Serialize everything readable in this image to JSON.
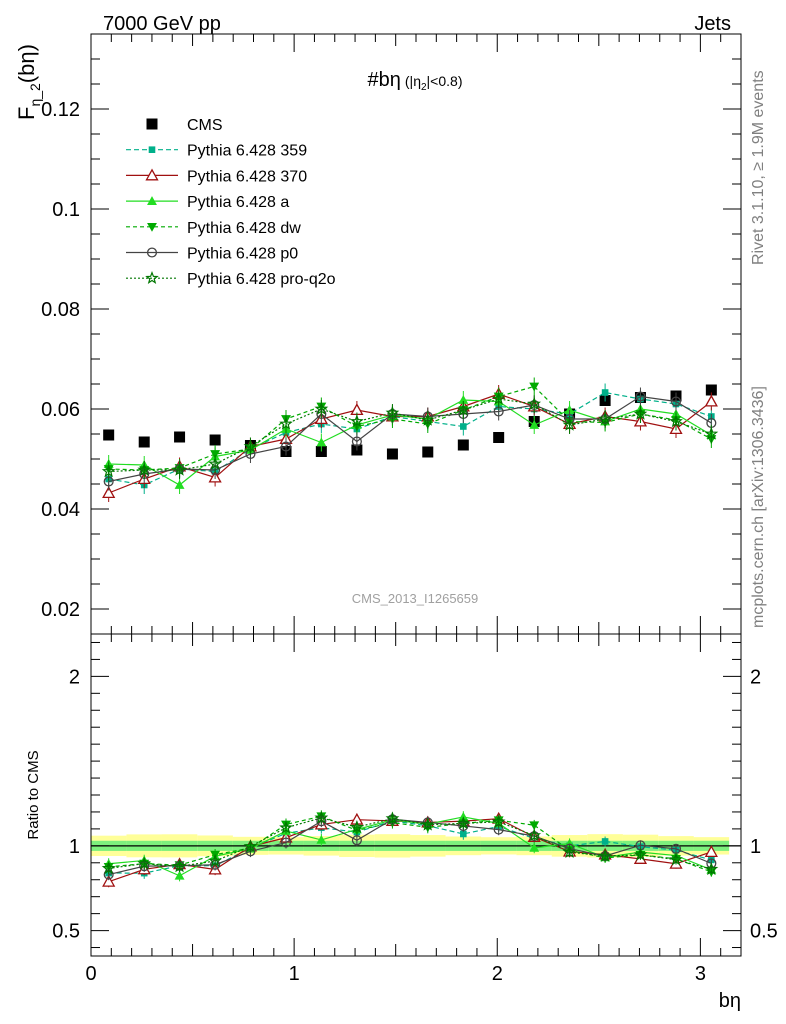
{
  "header": {
    "left": "7000 GeV pp",
    "right": "Jets"
  },
  "side_labels": {
    "rivet": "Rivet 3.1.10, ≥ 1.9M events",
    "mcplots": "mcplots.cern.ch [arXiv:1306.3436]"
  },
  "watermark": "CMS_2013_I1265659",
  "chart_data": [
    {
      "type": "scatter",
      "title": "#bη (|η_2|<0.8)",
      "title_main": "#bη",
      "title_paren_open": "(|η",
      "title_sub": "2",
      "title_paren_close": "|<0.8)",
      "ylabel": "F_η_2(bη)",
      "ylabel_main": "F",
      "ylabel_sub": "η_2",
      "ylabel_tail": "(bη)",
      "xlim": [
        0,
        3.2
      ],
      "ylim": [
        0.015,
        0.135
      ],
      "y_ticks": [
        "0.02",
        "0.04",
        "0.06",
        "0.08",
        "0.1",
        "0.12"
      ],
      "x": [
        0.087,
        0.262,
        0.436,
        0.611,
        0.785,
        0.96,
        1.134,
        1.309,
        1.484,
        1.658,
        1.833,
        2.007,
        2.182,
        2.356,
        2.531,
        2.705,
        2.88,
        3.054
      ],
      "legend_position": "top-left",
      "series": [
        {
          "name": "CMS",
          "color": "#000000",
          "marker": "square",
          "values": [
            0.0548,
            0.0534,
            0.0544,
            0.0538,
            0.0527,
            0.0515,
            0.0515,
            0.0518,
            0.051,
            0.0514,
            0.0528,
            0.0543,
            0.0575,
            0.059,
            0.0617,
            0.0623,
            0.0626,
            0.0638
          ]
        },
        {
          "name": "Pythia 6.428 359",
          "color": "#00b08a",
          "marker": "small-square",
          "dash": "5,3",
          "values": [
            0.046,
            0.0448,
            0.048,
            0.0475,
            0.052,
            0.0553,
            0.057,
            0.056,
            0.0585,
            0.0575,
            0.0565,
            0.0605,
            0.06,
            0.059,
            0.0633,
            0.062,
            0.061,
            0.0585
          ]
        },
        {
          "name": "Pythia 6.428 370",
          "color": "#a01010",
          "marker": "open-triangle",
          "dash": "",
          "values": [
            0.0432,
            0.046,
            0.0485,
            0.0463,
            0.0525,
            0.054,
            0.058,
            0.0598,
            0.0585,
            0.0585,
            0.0605,
            0.063,
            0.0605,
            0.057,
            0.0585,
            0.0575,
            0.056,
            0.0615
          ]
        },
        {
          "name": "Pythia 6.428 a",
          "color": "#22dd22",
          "marker": "filled-triangle",
          "dash": "",
          "values": [
            0.049,
            0.0488,
            0.0448,
            0.0505,
            0.0518,
            0.056,
            0.0533,
            0.0568,
            0.0588,
            0.058,
            0.0618,
            0.0615,
            0.0568,
            0.0598,
            0.0575,
            0.06,
            0.059,
            0.0548
          ]
        },
        {
          "name": "Pythia 6.428 dw",
          "color": "#00aa00",
          "marker": "down-triangle",
          "dash": "4,3",
          "values": [
            0.048,
            0.0478,
            0.0482,
            0.051,
            0.052,
            0.058,
            0.0605,
            0.0565,
            0.058,
            0.057,
            0.0598,
            0.0625,
            0.0645,
            0.0575,
            0.0573,
            0.059,
            0.0578,
            0.054
          ]
        },
        {
          "name": "Pythia 6.428 p0",
          "color": "#444444",
          "marker": "open-circle",
          "dash": "",
          "values": [
            0.0455,
            0.047,
            0.048,
            0.0478,
            0.051,
            0.0525,
            0.059,
            0.0535,
            0.059,
            0.0585,
            0.059,
            0.0595,
            0.0608,
            0.058,
            0.058,
            0.0625,
            0.0615,
            0.0572
          ]
        },
        {
          "name": "Pythia 6.428 pro-q2o",
          "color": "#007700",
          "marker": "star",
          "dash": "2,2",
          "values": [
            0.0475,
            0.0478,
            0.0478,
            0.049,
            0.0525,
            0.057,
            0.06,
            0.0575,
            0.0592,
            0.0578,
            0.0598,
            0.062,
            0.061,
            0.0568,
            0.058,
            0.059,
            0.0575,
            0.055
          ]
        }
      ]
    },
    {
      "type": "scatter",
      "ylabel": "Ratio to CMS",
      "xlabel": "bη",
      "xlim": [
        0,
        3.2
      ],
      "ylim": [
        0.35,
        2.25
      ],
      "y_ticks": [
        "0.5",
        "1",
        "2"
      ],
      "x_ticks": [
        "0",
        "1",
        "2",
        "3"
      ],
      "bands": {
        "stat_color": "#7df07d",
        "syst_color": "#ffff99",
        "stat": 0.03,
        "syst": 0.06
      },
      "x": [
        0.087,
        0.262,
        0.436,
        0.611,
        0.785,
        0.96,
        1.134,
        1.309,
        1.484,
        1.658,
        1.833,
        2.007,
        2.182,
        2.356,
        2.531,
        2.705,
        2.88,
        3.054
      ]
    }
  ]
}
